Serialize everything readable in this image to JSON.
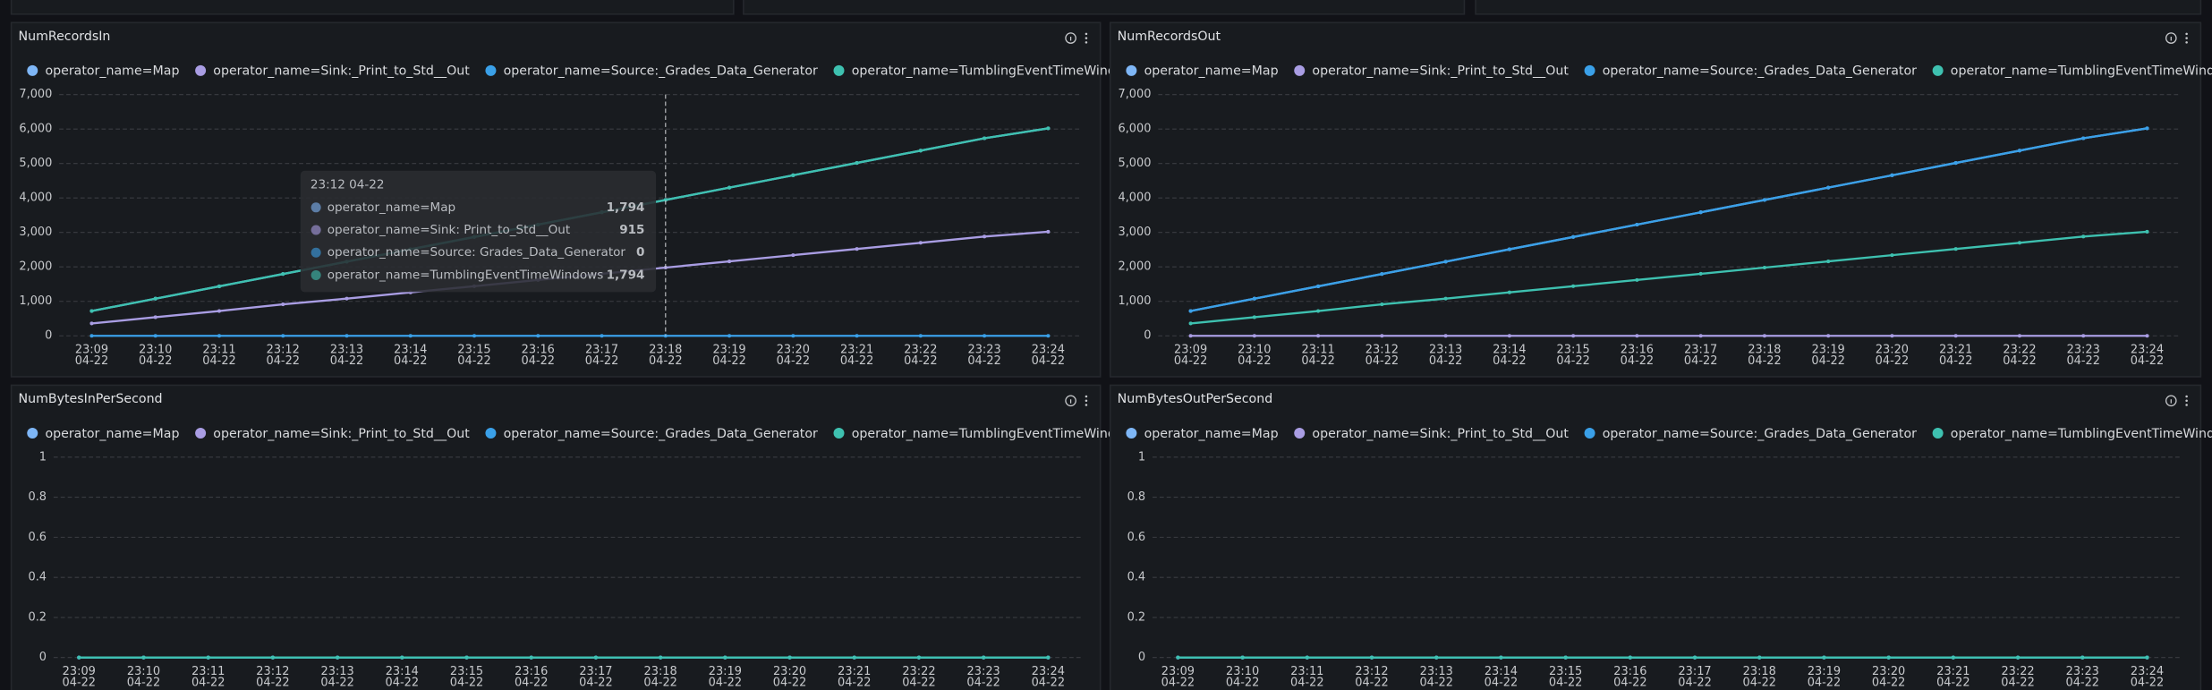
{
  "chart_data": [
    {
      "type": "line",
      "title": "NumRecordsIn",
      "categories": [
        [
          "23:09",
          "04-22"
        ],
        [
          "23:10",
          "04-22"
        ],
        [
          "23:11",
          "04-22"
        ],
        [
          "23:12",
          "04-22"
        ],
        [
          "23:13",
          "04-22"
        ],
        [
          "23:14",
          "04-22"
        ],
        [
          "23:15",
          "04-22"
        ],
        [
          "23:16",
          "04-22"
        ],
        [
          "23:17",
          "04-22"
        ],
        [
          "23:18",
          "04-22"
        ],
        [
          "23:19",
          "04-22"
        ],
        [
          "23:20",
          "04-22"
        ],
        [
          "23:21",
          "04-22"
        ],
        [
          "23:22",
          "04-22"
        ],
        [
          "23:23",
          "04-22"
        ],
        [
          "23:24",
          "04-22"
        ]
      ],
      "series": [
        {
          "name": "operator_name=Map",
          "color": "#7eb6f6",
          "values": [
            720,
            1078,
            1436,
            1794,
            2152,
            2510,
            2868,
            3226,
            3584,
            3942,
            4300,
            4658,
            5016,
            5374,
            5732,
            6020
          ]
        },
        {
          "name": "operator_name=Sink:_Print_to_Std__Out",
          "color": "#a99de3",
          "values": [
            360,
            540,
            720,
            915,
            1080,
            1260,
            1440,
            1620,
            1800,
            1980,
            2160,
            2340,
            2520,
            2700,
            2880,
            3020
          ]
        },
        {
          "name": "operator_name=Source:_Grades_Data_Generator",
          "color": "#3aa0e8",
          "values": [
            0,
            0,
            0,
            0,
            0,
            0,
            0,
            0,
            0,
            0,
            0,
            0,
            0,
            0,
            0,
            0
          ]
        },
        {
          "name": "operator_name=TumblingEventTimeWindows",
          "color": "#3ec1b0",
          "values": [
            720,
            1078,
            1436,
            1794,
            2152,
            2510,
            2868,
            3226,
            3584,
            3942,
            4300,
            4658,
            5016,
            5374,
            5732,
            6020
          ]
        }
      ],
      "ylim": [
        0,
        7000
      ],
      "yticks": [
        0,
        {
          "value": 1000,
          "label": "1,000"
        },
        {
          "value": 2000,
          "label": "2,000"
        },
        {
          "value": 3000,
          "label": "3,000"
        },
        {
          "value": 4000,
          "label": "4,000"
        },
        {
          "value": 5000,
          "label": "5,000"
        },
        {
          "value": 6000,
          "label": "6,000"
        },
        {
          "value": 7000,
          "label": "7,000"
        }
      ],
      "grid": true,
      "tooltip": {
        "title": "23:12 04-22",
        "items": [
          {
            "name": "operator_name=Map",
            "value": 1794,
            "label": "1,794"
          },
          {
            "name": "operator_name=Sink: Print_to_Std__Out",
            "value": 915
          },
          {
            "name": "operator_name=Source: Grades_Data_Generator",
            "value": 0
          },
          {
            "name": "operator_name=TumblingEventTimeWindows",
            "value": 1794,
            "label": "1,794"
          }
        ]
      }
    },
    {
      "type": "line",
      "title": "NumRecordsOut",
      "categories": [
        [
          "23:09",
          "04-22"
        ],
        [
          "23:10",
          "04-22"
        ],
        [
          "23:11",
          "04-22"
        ],
        [
          "23:12",
          "04-22"
        ],
        [
          "23:13",
          "04-22"
        ],
        [
          "23:14",
          "04-22"
        ],
        [
          "23:15",
          "04-22"
        ],
        [
          "23:16",
          "04-22"
        ],
        [
          "23:17",
          "04-22"
        ],
        [
          "23:18",
          "04-22"
        ],
        [
          "23:19",
          "04-22"
        ],
        [
          "23:20",
          "04-22"
        ],
        [
          "23:21",
          "04-22"
        ],
        [
          "23:22",
          "04-22"
        ],
        [
          "23:23",
          "04-22"
        ],
        [
          "23:24",
          "04-22"
        ]
      ],
      "series": [
        {
          "name": "operator_name=Map",
          "color": "#7eb6f6",
          "values": [
            720,
            1078,
            1436,
            1794,
            2152,
            2510,
            2868,
            3226,
            3584,
            3942,
            4300,
            4658,
            5016,
            5374,
            5732,
            6020
          ]
        },
        {
          "name": "operator_name=Sink:_Print_to_Std__Out",
          "color": "#a99de3",
          "values": [
            0,
            0,
            0,
            0,
            0,
            0,
            0,
            0,
            0,
            0,
            0,
            0,
            0,
            0,
            0,
            0
          ]
        },
        {
          "name": "operator_name=Source:_Grades_Data_Generator",
          "color": "#3aa0e8",
          "values": [
            720,
            1078,
            1436,
            1794,
            2152,
            2510,
            2868,
            3226,
            3584,
            3942,
            4300,
            4658,
            5016,
            5374,
            5732,
            6020
          ]
        },
        {
          "name": "operator_name=TumblingEventTimeWindows",
          "color": "#3ec1b0",
          "values": [
            360,
            540,
            720,
            915,
            1080,
            1260,
            1440,
            1620,
            1800,
            1980,
            2160,
            2340,
            2520,
            2700,
            2880,
            3020
          ]
        }
      ],
      "ylim": [
        0,
        7000
      ],
      "yticks": [
        0,
        {
          "value": 1000,
          "label": "1,000"
        },
        {
          "value": 2000,
          "label": "2,000"
        },
        {
          "value": 3000,
          "label": "3,000"
        },
        {
          "value": 4000,
          "label": "4,000"
        },
        {
          "value": 5000,
          "label": "5,000"
        },
        {
          "value": 6000,
          "label": "6,000"
        },
        {
          "value": 7000,
          "label": "7,000"
        }
      ],
      "grid": true
    },
    {
      "type": "line",
      "title": "NumBytesInPerSecond",
      "categories": [
        [
          "23:09",
          "04-22"
        ],
        [
          "23:10",
          "04-22"
        ],
        [
          "23:11",
          "04-22"
        ],
        [
          "23:12",
          "04-22"
        ],
        [
          "23:13",
          "04-22"
        ],
        [
          "23:14",
          "04-22"
        ],
        [
          "23:15",
          "04-22"
        ],
        [
          "23:16",
          "04-22"
        ],
        [
          "23:17",
          "04-22"
        ],
        [
          "23:18",
          "04-22"
        ],
        [
          "23:19",
          "04-22"
        ],
        [
          "23:20",
          "04-22"
        ],
        [
          "23:21",
          "04-22"
        ],
        [
          "23:22",
          "04-22"
        ],
        [
          "23:23",
          "04-22"
        ],
        [
          "23:24",
          "04-22"
        ]
      ],
      "series": [
        {
          "name": "operator_name=Map",
          "color": "#7eb6f6",
          "values": [
            0,
            0,
            0,
            0,
            0,
            0,
            0,
            0,
            0,
            0,
            0,
            0,
            0,
            0,
            0,
            0
          ]
        },
        {
          "name": "operator_name=Sink:_Print_to_Std__Out",
          "color": "#a99de3",
          "values": [
            0,
            0,
            0,
            0,
            0,
            0,
            0,
            0,
            0,
            0,
            0,
            0,
            0,
            0,
            0,
            0
          ]
        },
        {
          "name": "operator_name=Source:_Grades_Data_Generator",
          "color": "#3aa0e8",
          "values": [
            0,
            0,
            0,
            0,
            0,
            0,
            0,
            0,
            0,
            0,
            0,
            0,
            0,
            0,
            0,
            0
          ]
        },
        {
          "name": "operator_name=TumblingEventTimeWindows",
          "color": "#3ec1b0",
          "values": [
            0,
            0,
            0,
            0,
            0,
            0,
            0,
            0,
            0,
            0,
            0,
            0,
            0,
            0,
            0,
            0
          ]
        }
      ],
      "ylim": [
        0,
        1
      ],
      "yticks": [
        0,
        0.2,
        0.4,
        0.6,
        0.8,
        1
      ],
      "grid": true
    },
    {
      "type": "line",
      "title": "NumBytesOutPerSecond",
      "categories": [
        [
          "23:09",
          "04-22"
        ],
        [
          "23:10",
          "04-22"
        ],
        [
          "23:11",
          "04-22"
        ],
        [
          "23:12",
          "04-22"
        ],
        [
          "23:13",
          "04-22"
        ],
        [
          "23:14",
          "04-22"
        ],
        [
          "23:15",
          "04-22"
        ],
        [
          "23:16",
          "04-22"
        ],
        [
          "23:17",
          "04-22"
        ],
        [
          "23:18",
          "04-22"
        ],
        [
          "23:19",
          "04-22"
        ],
        [
          "23:20",
          "04-22"
        ],
        [
          "23:21",
          "04-22"
        ],
        [
          "23:22",
          "04-22"
        ],
        [
          "23:23",
          "04-22"
        ],
        [
          "23:24",
          "04-22"
        ]
      ],
      "series": [
        {
          "name": "operator_name=Map",
          "color": "#7eb6f6",
          "values": [
            0,
            0,
            0,
            0,
            0,
            0,
            0,
            0,
            0,
            0,
            0,
            0,
            0,
            0,
            0,
            0
          ]
        },
        {
          "name": "operator_name=Sink:_Print_to_Std__Out",
          "color": "#a99de3",
          "values": [
            0,
            0,
            0,
            0,
            0,
            0,
            0,
            0,
            0,
            0,
            0,
            0,
            0,
            0,
            0,
            0
          ]
        },
        {
          "name": "operator_name=Source:_Grades_Data_Generator",
          "color": "#3aa0e8",
          "values": [
            0,
            0,
            0,
            0,
            0,
            0,
            0,
            0,
            0,
            0,
            0,
            0,
            0,
            0,
            0,
            0
          ]
        },
        {
          "name": "operator_name=TumblingEventTimeWindows",
          "color": "#3ec1b0",
          "values": [
            0,
            0,
            0,
            0,
            0,
            0,
            0,
            0,
            0,
            0,
            0,
            0,
            0,
            0,
            0,
            0
          ]
        }
      ],
      "ylim": [
        0,
        1
      ],
      "yticks": [
        0,
        0.2,
        0.4,
        0.6,
        0.8,
        1
      ],
      "grid": true
    }
  ]
}
